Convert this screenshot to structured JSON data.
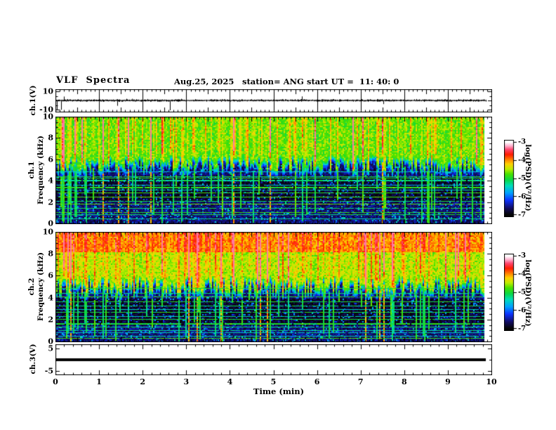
{
  "header": {
    "title": "VLF  Spectra",
    "date": "Aug.25, 2025",
    "station": "station= ANG",
    "start_ut": "start UT =  11: 40: 0"
  },
  "xaxis": {
    "label": "Time (min)",
    "ticks": [
      "0",
      "1",
      "2",
      "3",
      "4",
      "5",
      "6",
      "7",
      "8",
      "9",
      "10"
    ]
  },
  "panels": {
    "ch1_wave": {
      "ylabel": "ch.1(V)",
      "yticks": [
        "10",
        "-10"
      ]
    },
    "ch1_spec": {
      "channel": "ch.1",
      "ylabel": "Frequency (kHz)",
      "yticks": [
        "10",
        "8",
        "6",
        "4",
        "2",
        "0"
      ]
    },
    "ch2_spec": {
      "channel": "ch.2",
      "ylabel": "Frequency (kHz)",
      "yticks": [
        "10",
        "8",
        "6",
        "4",
        "2",
        "0"
      ]
    },
    "ch3_wave": {
      "ylabel": "ch.3(V)",
      "yticks": [
        "5",
        "-5"
      ]
    }
  },
  "colorbar": {
    "label": "log(PSD)(V²/Hz)",
    "ticks": [
      "-3",
      "-4",
      "-5",
      "-6",
      "-7"
    ]
  },
  "colors": {
    "foreground": "#000000",
    "background": "#ffffff",
    "colormap_low": "#000000",
    "colormap_mid": "#00dd44",
    "colormap_high": "#ffffff"
  },
  "chart_data": [
    {
      "type": "line",
      "name": "ch.1 time series",
      "xlabel": "Time (min)",
      "ylabel": "ch.1(V)",
      "x_range": [
        0,
        10
      ],
      "y_range": [
        -10,
        10
      ],
      "yticks": [
        10,
        -10
      ],
      "summary": "Noisy voltage trace centered on 0 V with frequent impulsive spikes, mostly downward to about -9 V, over the full 0 to ~9.8 min record; vertical grid lines at each minute."
    },
    {
      "type": "heatmap",
      "name": "ch.1 spectrogram",
      "xlabel": "Time (min)",
      "ylabel": "Frequency (kHz)",
      "x_range": [
        0,
        9.8
      ],
      "y_range": [
        0,
        10
      ],
      "z_label": "log(PSD)(V^2/Hz)",
      "z_range": [
        -7,
        -3
      ],
      "summary": "Broadband VLF noise: strong power (green/yellow, about -5 to -4.3) above a ragged ~5-6.5 kHz boundary with many vertical sferic streaks reaching red (about -3.6); weak power (dark blue/black, about -6.5 to -7) below ~5 kHz crossed by dense narrow horizontal harmonic lines (cyan/green, about -5.5 to -4.8) spaced roughly 0.2-0.5 kHz and by vertical green/red streaks."
    },
    {
      "type": "heatmap",
      "name": "ch.2 spectrogram",
      "xlabel": "Time (min)",
      "ylabel": "Frequency (kHz)",
      "x_range": [
        0,
        9.8
      ],
      "y_range": [
        0,
        10
      ],
      "z_label": "log(PSD)(V^2/Hz)",
      "z_range": [
        -7,
        -3
      ],
      "summary": "Similar to ch.1 but more intense: 8-10 kHz band is orange/red (about -4), 5-8 kHz green/yellow, dark region below a ragged ~4.5-6 kHz boundary with the same horizontal harmonic lines and vertical sferic streaks."
    },
    {
      "type": "line",
      "name": "ch.3 time series",
      "xlabel": "Time (min)",
      "ylabel": "ch.3(V)",
      "x_range": [
        0,
        10
      ],
      "y_range": [
        -5,
        5
      ],
      "yticks": [
        5,
        -5
      ],
      "summary": "Constant 0 V thick flat line from 0 to about 9.8 min (dead/flat channel)."
    }
  ]
}
